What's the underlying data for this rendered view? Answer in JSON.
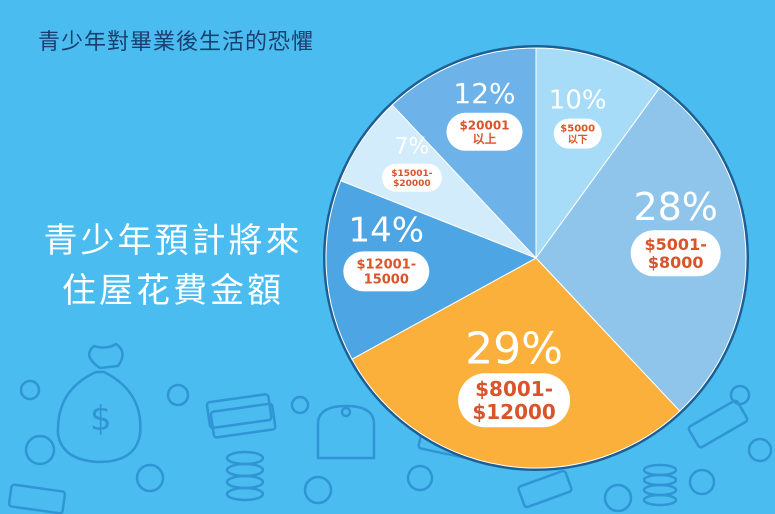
{
  "page_title": "青少年對畢業後生活的恐懼",
  "chart_title_lines": [
    "青少年預計將來",
    "住屋花費金額"
  ],
  "colors": {
    "background": "#4bbcf0",
    "doodle": "#2f95d4",
    "outline": "#1d5f95",
    "label_bg": "#ffffff",
    "label_text": "#d9542a"
  },
  "chart_data": {
    "type": "pie",
    "title": "青少年預計將來住屋花費金額",
    "start_angle_deg": 0,
    "direction": "clockwise",
    "slices": [
      {
        "percent": "10%",
        "value": 10,
        "label_lines": [
          "$5000",
          "以下"
        ],
        "color": "#a6dcf7"
      },
      {
        "percent": "28%",
        "value": 28,
        "label_lines": [
          "$5001-",
          "$8000"
        ],
        "color": "#8fc5ea"
      },
      {
        "percent": "29%",
        "value": 29,
        "label_lines": [
          "$8001-",
          "$12000"
        ],
        "color": "#fbb03b"
      },
      {
        "percent": "14%",
        "value": 14,
        "label_lines": [
          "$12001-",
          "15000"
        ],
        "color": "#4ea5e4"
      },
      {
        "percent": "7%",
        "value": 7,
        "label_lines": [
          "$15001-",
          "$20000"
        ],
        "color": "#d2ecfb"
      },
      {
        "percent": "12%",
        "value": 12,
        "label_lines": [
          "$20001",
          "以上"
        ],
        "color": "#6db2e8"
      }
    ]
  }
}
